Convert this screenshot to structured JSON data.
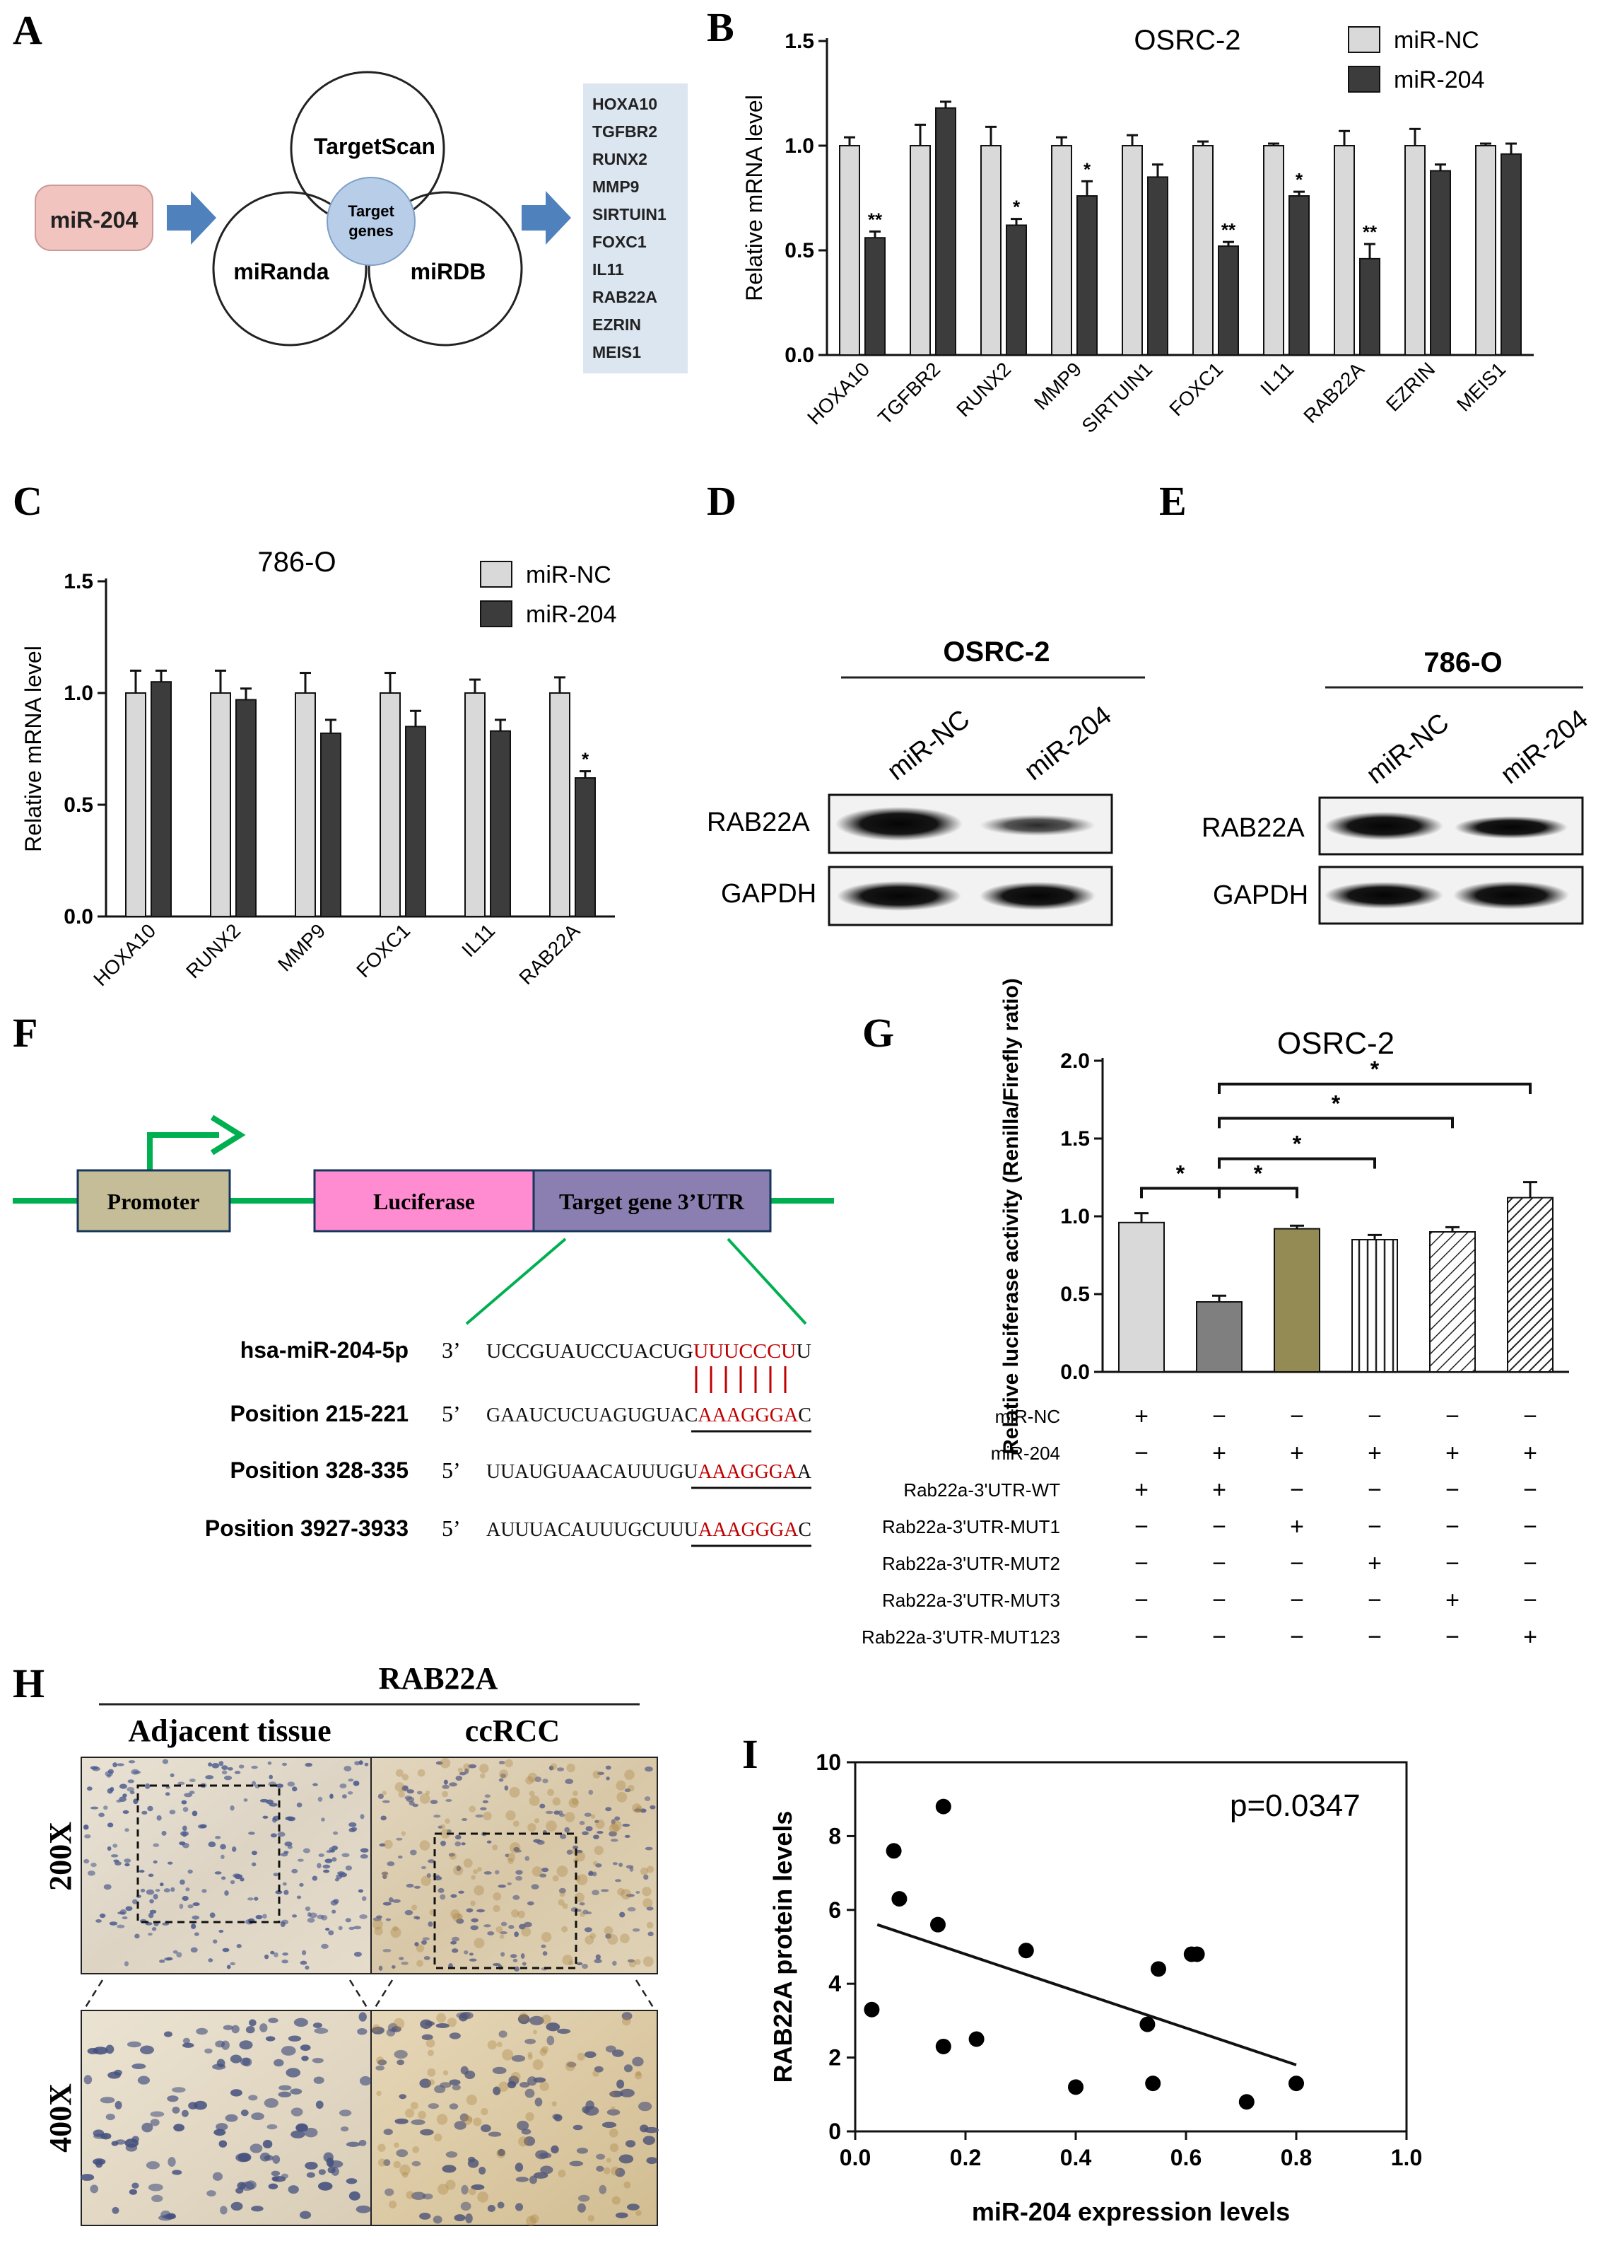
{
  "panel_letters": [
    "A",
    "B",
    "C",
    "D",
    "E",
    "F",
    "G",
    "H",
    "I"
  ],
  "panel_a": {
    "mirna": "miR-204",
    "circles": [
      "TargetScan",
      "miRanda",
      "miRDB"
    ],
    "center_line1": "Target",
    "center_line2": "genes",
    "genes": [
      "HOXA10",
      "TGFBR2",
      "RUNX2",
      "MMP9",
      "SIRTUIN1",
      "FOXC1",
      "IL11",
      "RAB22A",
      "EZRIN",
      "MEIS1"
    ]
  },
  "panel_d": {
    "cell_line": "OSRC-2",
    "lanes": [
      "miR-NC",
      "miR-204"
    ],
    "rows": [
      "RAB22A",
      "GAPDH"
    ]
  },
  "panel_e": {
    "cell_line": "786-O",
    "lanes": [
      "miR-NC",
      "miR-204"
    ],
    "rows": [
      "RAB22A",
      "GAPDH"
    ]
  },
  "panel_f": {
    "promoter": "Promoter",
    "luciferase": "Luciferase",
    "utr": "Target gene  3’UTR",
    "rows": [
      {
        "label": "hsa-miR-204-5p",
        "end": "3’",
        "black": "UCCGUAUCCUACUG",
        "red": "UUUCCCU",
        "tail": "U"
      },
      {
        "label": "Position 215-221",
        "end": "5’",
        "black": "GAAUCUCUAGUGUAC",
        "red": "AAAGGGA",
        "tail": "C"
      },
      {
        "label": "Position 328-335",
        "end": "5’",
        "black": "UUAUGUAACAUUUGU",
        "red": "AAAGGGA",
        "tail": "A"
      },
      {
        "label": "Position 3927-3933",
        "end": "5’",
        "black": "AUUUACAUUUGCUUU",
        "red": "AAAGGGA",
        "tail": "C"
      }
    ]
  },
  "panel_g_rows": [
    {
      "label": "miR-NC",
      "signs": [
        "+",
        "−",
        "−",
        "−",
        "−",
        "−"
      ]
    },
    {
      "label": "miR-204",
      "signs": [
        "−",
        "+",
        "+",
        "+",
        "+",
        "+"
      ]
    },
    {
      "label": "Rab22a-3'UTR-WT",
      "signs": [
        "+",
        "+",
        "−",
        "−",
        "−",
        "−"
      ]
    },
    {
      "label": "Rab22a-3'UTR-MUT1",
      "signs": [
        "−",
        "−",
        "+",
        "−",
        "−",
        "−"
      ]
    },
    {
      "label": "Rab22a-3'UTR-MUT2",
      "signs": [
        "−",
        "−",
        "−",
        "+",
        "−",
        "−"
      ]
    },
    {
      "label": "Rab22a-3'UTR-MUT3",
      "signs": [
        "−",
        "−",
        "−",
        "−",
        "+",
        "−"
      ]
    },
    {
      "label": "Rab22a-3'UTR-MUT123",
      "signs": [
        "−",
        "−",
        "−",
        "−",
        "−",
        "+"
      ]
    }
  ],
  "panel_h": {
    "title": "RAB22A",
    "columns": [
      "Adjacent tissue",
      "ccRCC"
    ],
    "rows": [
      "200X",
      "400X"
    ]
  },
  "chart_data": [
    {
      "id": "B",
      "type": "bar",
      "title": "OSRC-2",
      "ylabel": "Relative mRNA level",
      "ylim": [
        0,
        1.5
      ],
      "yticks": [
        0.0,
        0.5,
        1.0,
        1.5
      ],
      "categories": [
        "HOXA10",
        "TGFBR2",
        "RUNX2",
        "MMP9",
        "SIRTUIN1",
        "FOXC1",
        "IL11",
        "RAB22A",
        "EZRIN",
        "MEIS1"
      ],
      "series": [
        {
          "name": "miR-NC",
          "values": [
            1.0,
            1.0,
            1.0,
            1.0,
            1.0,
            1.0,
            1.0,
            1.0,
            1.0,
            1.0
          ],
          "errors": [
            0.04,
            0.1,
            0.09,
            0.04,
            0.05,
            0.02,
            0.01,
            0.07,
            0.08,
            0.01
          ],
          "color": "#d9d9d9"
        },
        {
          "name": "miR-204",
          "values": [
            0.56,
            1.18,
            0.62,
            0.76,
            0.85,
            0.52,
            0.76,
            0.46,
            0.88,
            0.96
          ],
          "errors": [
            0.03,
            0.03,
            0.03,
            0.07,
            0.06,
            0.02,
            0.02,
            0.07,
            0.03,
            0.05
          ],
          "color": "#3c3c3c"
        }
      ],
      "significance": [
        "**",
        "",
        "*",
        "*",
        "",
        "**",
        "*",
        "**",
        "",
        ""
      ],
      "legend": "top-right"
    },
    {
      "id": "C",
      "type": "bar",
      "title": "786-O",
      "ylabel": "Relative mRNA level",
      "ylim": [
        0,
        1.5
      ],
      "yticks": [
        0.0,
        0.5,
        1.0,
        1.5
      ],
      "categories": [
        "HOXA10",
        "RUNX2",
        "MMP9",
        "FOXC1",
        "IL11",
        "RAB22A"
      ],
      "series": [
        {
          "name": "miR-NC",
          "values": [
            1.0,
            1.0,
            1.0,
            1.0,
            1.0,
            1.0
          ],
          "errors": [
            0.1,
            0.1,
            0.09,
            0.09,
            0.06,
            0.07
          ],
          "color": "#d9d9d9"
        },
        {
          "name": "miR-204",
          "values": [
            1.05,
            0.97,
            0.82,
            0.85,
            0.83,
            0.62
          ],
          "errors": [
            0.05,
            0.05,
            0.06,
            0.07,
            0.05,
            0.03
          ],
          "color": "#3c3c3c"
        }
      ],
      "significance": [
        "",
        "",
        "",
        "",
        "",
        "*"
      ],
      "legend": "top-right"
    },
    {
      "id": "G",
      "type": "bar",
      "title": "OSRC-2",
      "ylabel": "Relative luciferase activity (Renilla/Firefly ratio)",
      "ylim": [
        0,
        2.0
      ],
      "yticks": [
        0.0,
        0.5,
        1.0,
        1.5,
        2.0
      ],
      "values": [
        0.96,
        0.45,
        0.92,
        0.85,
        0.9,
        1.12
      ],
      "errors": [
        0.06,
        0.04,
        0.02,
        0.03,
        0.03,
        0.1
      ],
      "significance_brackets": [
        {
          "from": 0,
          "to": 1,
          "label": "*"
        },
        {
          "from": 1,
          "to": 2,
          "label": "*"
        },
        {
          "from": 1,
          "to": 3,
          "label": "*"
        },
        {
          "from": 1,
          "to": 4,
          "label": "*"
        },
        {
          "from": 1,
          "to": 5,
          "label": "*"
        }
      ]
    },
    {
      "id": "I",
      "type": "scatter",
      "xlabel": "miR-204 expression levels",
      "ylabel": "RAB22A protein levels",
      "xlim": [
        0,
        1.0
      ],
      "ylim": [
        0,
        10
      ],
      "xticks": [
        0.0,
        0.2,
        0.4,
        0.6,
        0.8,
        1.0
      ],
      "yticks": [
        0,
        2,
        4,
        6,
        8,
        10
      ],
      "annotation": "p=0.0347",
      "points": [
        [
          0.03,
          3.3
        ],
        [
          0.07,
          7.6
        ],
        [
          0.08,
          6.3
        ],
        [
          0.15,
          5.6
        ],
        [
          0.16,
          8.8
        ],
        [
          0.16,
          2.3
        ],
        [
          0.22,
          2.5
        ],
        [
          0.31,
          4.9
        ],
        [
          0.4,
          1.2
        ],
        [
          0.53,
          2.9
        ],
        [
          0.54,
          1.3
        ],
        [
          0.55,
          4.4
        ],
        [
          0.61,
          4.8
        ],
        [
          0.62,
          4.8
        ],
        [
          0.71,
          0.8
        ],
        [
          0.8,
          1.3
        ]
      ],
      "fit_line": [
        [
          0.04,
          5.6
        ],
        [
          0.8,
          1.8
        ]
      ]
    }
  ]
}
